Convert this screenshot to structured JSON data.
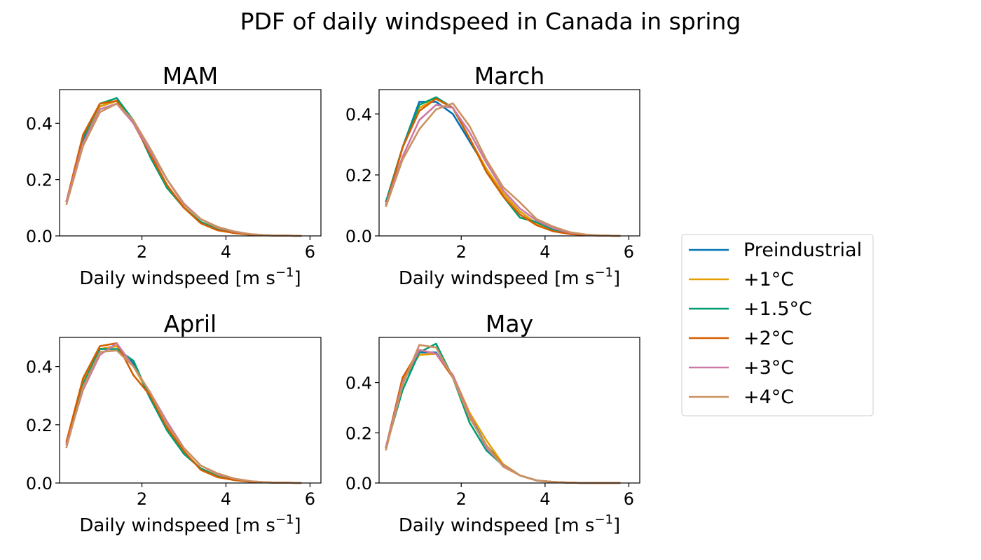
{
  "suptitle": "PDF of daily windspeed in Canada in spring",
  "xlabel_base": "Daily windspeed [m s",
  "xlabel_exp": "−1",
  "xlabel_close": "]",
  "legend": [
    {
      "label": "Preindustrial",
      "color": "#0072B2"
    },
    {
      "label": "+1°C",
      "color": "#E69F00"
    },
    {
      "label": "+1.5°C",
      "color": "#009E73"
    },
    {
      "label": "+2°C",
      "color": "#D55E00"
    },
    {
      "label": "+3°C",
      "color": "#CC79A7"
    },
    {
      "label": "+4°C",
      "color": "#CA9161"
    }
  ],
  "chart_data": [
    {
      "type": "line",
      "title": "MAM",
      "xlabel": "Daily windspeed [m s−1]",
      "xlim": [
        0.04,
        6.26
      ],
      "ylim": [
        0,
        0.52
      ],
      "xticks": [
        2,
        4,
        6
      ],
      "yticks": [
        0.0,
        0.2,
        0.4
      ],
      "x": [
        0.2,
        0.6,
        1.0,
        1.4,
        1.8,
        2.2,
        2.6,
        3.0,
        3.4,
        3.8,
        4.2,
        4.6,
        5.0,
        5.4,
        5.8
      ],
      "series": [
        {
          "name": "Preindustrial",
          "values": [
            0.12,
            0.34,
            0.46,
            0.48,
            0.41,
            0.29,
            0.18,
            0.1,
            0.05,
            0.025,
            0.012,
            0.004,
            0.002,
            0.001,
            0.0
          ]
        },
        {
          "name": "+1°C",
          "values": [
            0.12,
            0.35,
            0.46,
            0.48,
            0.41,
            0.29,
            0.18,
            0.1,
            0.05,
            0.025,
            0.012,
            0.004,
            0.002,
            0.001,
            0.0
          ]
        },
        {
          "name": "+1.5°C",
          "values": [
            0.12,
            0.35,
            0.47,
            0.49,
            0.41,
            0.28,
            0.17,
            0.1,
            0.05,
            0.022,
            0.01,
            0.004,
            0.002,
            0.001,
            0.0
          ]
        },
        {
          "name": "+2°C",
          "values": [
            0.12,
            0.36,
            0.47,
            0.48,
            0.4,
            0.29,
            0.18,
            0.1,
            0.045,
            0.02,
            0.01,
            0.004,
            0.002,
            0.001,
            0.0
          ]
        },
        {
          "name": "+3°C",
          "values": [
            0.12,
            0.33,
            0.45,
            0.47,
            0.4,
            0.3,
            0.2,
            0.115,
            0.06,
            0.03,
            0.015,
            0.006,
            0.002,
            0.001,
            0.0
          ]
        },
        {
          "name": "+4°C",
          "values": [
            0.11,
            0.32,
            0.44,
            0.47,
            0.41,
            0.31,
            0.2,
            0.11,
            0.06,
            0.032,
            0.016,
            0.006,
            0.002,
            0.001,
            0.0
          ]
        }
      ]
    },
    {
      "type": "line",
      "title": "March",
      "xlabel": "Daily windspeed [m s−1]",
      "xlim": [
        0.04,
        6.26
      ],
      "ylim": [
        0,
        0.48
      ],
      "xticks": [
        2,
        4,
        6
      ],
      "yticks": [
        0.0,
        0.2,
        0.4
      ],
      "x": [
        0.2,
        0.6,
        1.0,
        1.4,
        1.8,
        2.2,
        2.6,
        3.0,
        3.4,
        3.8,
        4.2,
        4.6,
        5.0,
        5.4,
        5.8
      ],
      "series": [
        {
          "name": "Preindustrial",
          "values": [
            0.11,
            0.29,
            0.44,
            0.44,
            0.4,
            0.31,
            0.22,
            0.14,
            0.08,
            0.04,
            0.02,
            0.008,
            0.003,
            0.001,
            0.0
          ]
        },
        {
          "name": "+1°C",
          "values": [
            0.1,
            0.29,
            0.42,
            0.45,
            0.42,
            0.32,
            0.22,
            0.14,
            0.08,
            0.04,
            0.02,
            0.008,
            0.003,
            0.001,
            0.0
          ]
        },
        {
          "name": "+1.5°C",
          "values": [
            0.11,
            0.29,
            0.43,
            0.455,
            0.42,
            0.32,
            0.21,
            0.13,
            0.06,
            0.045,
            0.02,
            0.008,
            0.003,
            0.001,
            0.0
          ]
        },
        {
          "name": "+2°C",
          "values": [
            0.1,
            0.29,
            0.41,
            0.45,
            0.42,
            0.32,
            0.21,
            0.13,
            0.07,
            0.035,
            0.015,
            0.006,
            0.002,
            0.001,
            0.0
          ]
        },
        {
          "name": "+3°C",
          "values": [
            0.1,
            0.26,
            0.38,
            0.43,
            0.42,
            0.34,
            0.24,
            0.15,
            0.09,
            0.05,
            0.025,
            0.01,
            0.004,
            0.001,
            0.0
          ]
        },
        {
          "name": "+4°C",
          "values": [
            0.095,
            0.25,
            0.35,
            0.415,
            0.435,
            0.36,
            0.25,
            0.16,
            0.11,
            0.055,
            0.03,
            0.012,
            0.004,
            0.001,
            0.0
          ]
        }
      ]
    },
    {
      "type": "line",
      "title": "April",
      "xlabel": "Daily windspeed [m s−1]",
      "xlim": [
        0.04,
        6.26
      ],
      "ylim": [
        0,
        0.5
      ],
      "xticks": [
        2,
        4,
        6
      ],
      "yticks": [
        0.0,
        0.2,
        0.4
      ],
      "x": [
        0.2,
        0.6,
        1.0,
        1.4,
        1.8,
        2.2,
        2.6,
        3.0,
        3.4,
        3.8,
        4.2,
        4.6,
        5.0,
        5.4,
        5.8
      ],
      "series": [
        {
          "name": "Preindustrial",
          "values": [
            0.13,
            0.35,
            0.46,
            0.47,
            0.41,
            0.29,
            0.19,
            0.1,
            0.05,
            0.025,
            0.012,
            0.004,
            0.002,
            0.001,
            0.0
          ]
        },
        {
          "name": "+1°C",
          "values": [
            0.13,
            0.35,
            0.46,
            0.47,
            0.4,
            0.3,
            0.19,
            0.105,
            0.05,
            0.025,
            0.012,
            0.004,
            0.002,
            0.001,
            0.0
          ]
        },
        {
          "name": "+1.5°C",
          "values": [
            0.14,
            0.34,
            0.46,
            0.46,
            0.42,
            0.29,
            0.18,
            0.1,
            0.05,
            0.022,
            0.01,
            0.004,
            0.002,
            0.001,
            0.0
          ]
        },
        {
          "name": "+2°C",
          "values": [
            0.14,
            0.36,
            0.47,
            0.48,
            0.37,
            0.3,
            0.19,
            0.11,
            0.045,
            0.02,
            0.01,
            0.004,
            0.002,
            0.001,
            0.0
          ]
        },
        {
          "name": "+3°C",
          "values": [
            0.13,
            0.32,
            0.44,
            0.48,
            0.4,
            0.31,
            0.21,
            0.12,
            0.06,
            0.03,
            0.015,
            0.006,
            0.002,
            0.001,
            0.0
          ]
        },
        {
          "name": "+4°C",
          "values": [
            0.12,
            0.33,
            0.45,
            0.455,
            0.4,
            0.31,
            0.2,
            0.12,
            0.06,
            0.033,
            0.015,
            0.006,
            0.002,
            0.001,
            0.0
          ]
        }
      ]
    },
    {
      "type": "line",
      "title": "May",
      "xlabel": "Daily windspeed [m s−1]",
      "xlim": [
        0.04,
        6.26
      ],
      "ylim": [
        0,
        0.58
      ],
      "xticks": [
        2,
        4,
        6
      ],
      "yticks": [
        0.0,
        0.2,
        0.4
      ],
      "x": [
        0.2,
        0.6,
        1.0,
        1.4,
        1.8,
        2.2,
        2.6,
        3.0,
        3.4,
        3.8,
        4.2,
        4.6,
        5.0,
        5.4,
        5.8
      ],
      "series": [
        {
          "name": "Preindustrial",
          "values": [
            0.14,
            0.4,
            0.52,
            0.52,
            0.42,
            0.27,
            0.15,
            0.075,
            0.03,
            0.01,
            0.004,
            0.001,
            0.0,
            0.0,
            0.0
          ]
        },
        {
          "name": "+1°C",
          "values": [
            0.14,
            0.41,
            0.51,
            0.515,
            0.43,
            0.28,
            0.17,
            0.075,
            0.03,
            0.01,
            0.004,
            0.001,
            0.0,
            0.0,
            0.0
          ]
        },
        {
          "name": "+1.5°C",
          "values": [
            0.14,
            0.37,
            0.52,
            0.555,
            0.42,
            0.24,
            0.13,
            0.07,
            0.03,
            0.01,
            0.004,
            0.001,
            0.0,
            0.0,
            0.0
          ]
        },
        {
          "name": "+2°C",
          "values": [
            0.14,
            0.42,
            0.53,
            0.515,
            0.42,
            0.26,
            0.15,
            0.07,
            0.03,
            0.01,
            0.004,
            0.001,
            0.0,
            0.0,
            0.0
          ]
        },
        {
          "name": "+3°C",
          "values": [
            0.14,
            0.4,
            0.53,
            0.515,
            0.43,
            0.27,
            0.14,
            0.07,
            0.03,
            0.01,
            0.004,
            0.001,
            0.0,
            0.0,
            0.0
          ]
        },
        {
          "name": "+4°C",
          "values": [
            0.13,
            0.39,
            0.55,
            0.54,
            0.42,
            0.26,
            0.15,
            0.065,
            0.03,
            0.01,
            0.004,
            0.001,
            0.0,
            0.0,
            0.0
          ]
        }
      ]
    }
  ]
}
